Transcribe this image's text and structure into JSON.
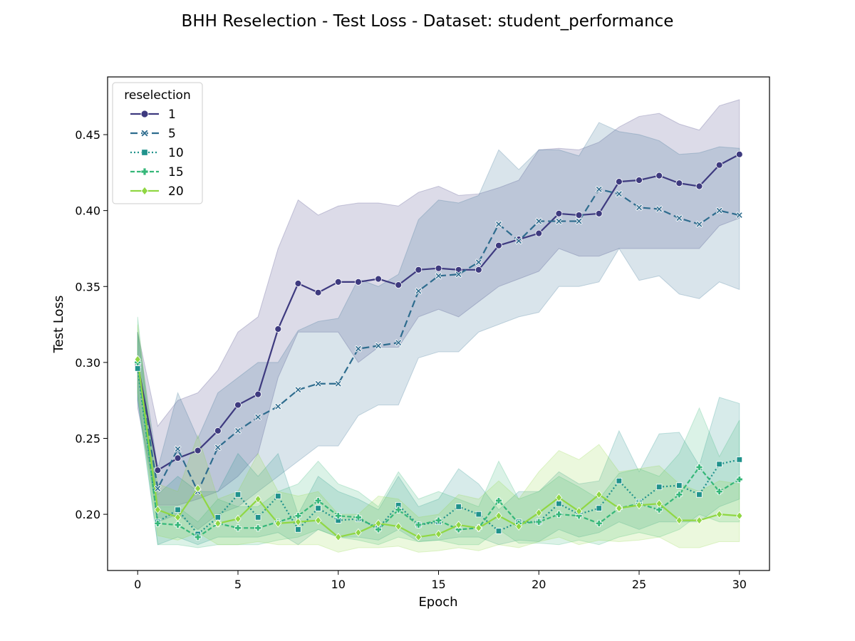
{
  "chart_data": {
    "type": "line",
    "title": "BHH Reselection - Test Loss - Dataset: student_performance",
    "xlabel": "Epoch",
    "ylabel": "Test Loss",
    "xlim": [
      -1.5,
      31.5
    ],
    "ylim": [
      0.163,
      0.488
    ],
    "xticks": [
      0,
      5,
      10,
      15,
      20,
      25,
      30
    ],
    "yticks": [
      0.2,
      0.25,
      0.3,
      0.35,
      0.4,
      0.45
    ],
    "xtick_labels": [
      "0",
      "5",
      "10",
      "15",
      "20",
      "25",
      "30"
    ],
    "ytick_labels": [
      "0.20",
      "0.25",
      "0.30",
      "0.35",
      "0.40",
      "0.45"
    ],
    "grid": false,
    "legend": {
      "title": "reselection",
      "position": "top-left"
    },
    "x": [
      0,
      1,
      2,
      3,
      4,
      5,
      6,
      7,
      8,
      9,
      10,
      11,
      12,
      13,
      14,
      15,
      16,
      17,
      18,
      19,
      20,
      21,
      22,
      23,
      24,
      25,
      26,
      27,
      28,
      29,
      30
    ],
    "series": [
      {
        "name": "1",
        "color": "#3e3a7f",
        "dash": "solid",
        "marker": "circle",
        "values": [
          0.299,
          0.229,
          0.237,
          0.242,
          0.255,
          0.272,
          0.279,
          0.322,
          0.352,
          0.346,
          0.353,
          0.353,
          0.355,
          0.351,
          0.361,
          0.362,
          0.361,
          0.361,
          0.377,
          0.381,
          0.385,
          0.398,
          0.397,
          0.398,
          0.419,
          0.42,
          0.423,
          0.418,
          0.416,
          0.43,
          0.437
        ],
        "lower": [
          0.27,
          0.206,
          0.206,
          0.21,
          0.215,
          0.225,
          0.24,
          0.29,
          0.32,
          0.32,
          0.32,
          0.3,
          0.31,
          0.31,
          0.33,
          0.335,
          0.33,
          0.34,
          0.35,
          0.355,
          0.36,
          0.375,
          0.37,
          0.37,
          0.375,
          0.375,
          0.375,
          0.375,
          0.375,
          0.39,
          0.395
        ],
        "upper": [
          0.32,
          0.258,
          0.275,
          0.28,
          0.295,
          0.32,
          0.33,
          0.375,
          0.407,
          0.397,
          0.403,
          0.405,
          0.405,
          0.403,
          0.412,
          0.416,
          0.41,
          0.411,
          0.415,
          0.42,
          0.44,
          0.441,
          0.44,
          0.445,
          0.455,
          0.462,
          0.464,
          0.457,
          0.453,
          0.469,
          0.473
        ]
      },
      {
        "name": "5",
        "color": "#2e6c8e",
        "dash": "10,5",
        "marker": "x",
        "values": [
          0.298,
          0.217,
          0.243,
          0.215,
          0.244,
          0.255,
          0.264,
          0.271,
          0.282,
          0.286,
          0.286,
          0.309,
          0.311,
          0.313,
          0.347,
          0.357,
          0.358,
          0.366,
          0.391,
          0.38,
          0.393,
          0.393,
          0.393,
          0.414,
          0.411,
          0.402,
          0.401,
          0.395,
          0.391,
          0.4,
          0.397
        ],
        "lower": [
          0.275,
          0.195,
          0.2,
          0.19,
          0.2,
          0.205,
          0.215,
          0.225,
          0.235,
          0.245,
          0.245,
          0.265,
          0.272,
          0.272,
          0.303,
          0.307,
          0.307,
          0.32,
          0.325,
          0.33,
          0.333,
          0.35,
          0.35,
          0.353,
          0.375,
          0.354,
          0.357,
          0.345,
          0.342,
          0.353,
          0.348
        ],
        "upper": [
          0.32,
          0.23,
          0.28,
          0.25,
          0.28,
          0.29,
          0.3,
          0.3,
          0.321,
          0.327,
          0.329,
          0.355,
          0.35,
          0.358,
          0.394,
          0.407,
          0.405,
          0.41,
          0.44,
          0.427,
          0.44,
          0.44,
          0.436,
          0.458,
          0.452,
          0.45,
          0.446,
          0.437,
          0.438,
          0.442,
          0.441
        ]
      },
      {
        "name": "10",
        "color": "#20928c",
        "dash": "2,3",
        "marker": "square",
        "values": [
          0.296,
          0.195,
          0.203,
          0.187,
          0.198,
          0.213,
          0.198,
          0.212,
          0.19,
          0.204,
          0.196,
          0.197,
          0.191,
          0.206,
          0.193,
          0.195,
          0.205,
          0.2,
          0.189,
          0.195,
          0.195,
          0.207,
          0.2,
          0.204,
          0.222,
          0.208,
          0.218,
          0.219,
          0.213,
          0.233,
          0.236
        ],
        "lower": [
          0.275,
          0.18,
          0.185,
          0.18,
          0.185,
          0.185,
          0.185,
          0.188,
          0.18,
          0.19,
          0.185,
          0.185,
          0.183,
          0.19,
          0.182,
          0.183,
          0.185,
          0.185,
          0.18,
          0.183,
          0.182,
          0.19,
          0.185,
          0.188,
          0.195,
          0.19,
          0.195,
          0.195,
          0.195,
          0.205,
          0.21
        ],
        "upper": [
          0.32,
          0.213,
          0.225,
          0.215,
          0.215,
          0.24,
          0.225,
          0.24,
          0.2,
          0.225,
          0.215,
          0.21,
          0.203,
          0.225,
          0.205,
          0.21,
          0.23,
          0.22,
          0.203,
          0.215,
          0.215,
          0.228,
          0.22,
          0.222,
          0.255,
          0.228,
          0.253,
          0.254,
          0.232,
          0.277,
          0.273
        ]
      },
      {
        "name": "15",
        "color": "#35b779",
        "dash": "6,3",
        "marker": "plus",
        "values": [
          0.3,
          0.194,
          0.193,
          0.185,
          0.194,
          0.191,
          0.191,
          0.195,
          0.199,
          0.209,
          0.199,
          0.198,
          0.19,
          0.203,
          0.193,
          0.196,
          0.19,
          0.191,
          0.209,
          0.194,
          0.195,
          0.2,
          0.199,
          0.194,
          0.204,
          0.207,
          0.203,
          0.213,
          0.231,
          0.215,
          0.223
        ],
        "lower": [
          0.28,
          0.18,
          0.18,
          0.178,
          0.18,
          0.18,
          0.18,
          0.183,
          0.185,
          0.19,
          0.185,
          0.183,
          0.18,
          0.185,
          0.182,
          0.183,
          0.18,
          0.18,
          0.19,
          0.181,
          0.181,
          0.18,
          0.183,
          0.18,
          0.185,
          0.188,
          0.185,
          0.19,
          0.2,
          0.195,
          0.195
        ],
        "upper": [
          0.33,
          0.205,
          0.205,
          0.195,
          0.21,
          0.205,
          0.205,
          0.215,
          0.22,
          0.235,
          0.22,
          0.215,
          0.205,
          0.228,
          0.21,
          0.215,
          0.21,
          0.205,
          0.235,
          0.21,
          0.215,
          0.225,
          0.218,
          0.21,
          0.227,
          0.23,
          0.225,
          0.24,
          0.27,
          0.238,
          0.262
        ]
      },
      {
        "name": "20",
        "color": "#90d743",
        "dash": "solid",
        "marker": "diamond",
        "values": [
          0.302,
          0.203,
          0.198,
          0.217,
          0.194,
          0.197,
          0.21,
          0.194,
          0.195,
          0.196,
          0.185,
          0.188,
          0.194,
          0.192,
          0.185,
          0.187,
          0.193,
          0.191,
          0.199,
          0.192,
          0.201,
          0.211,
          0.202,
          0.213,
          0.204,
          0.206,
          0.207,
          0.196,
          0.196,
          0.2,
          0.199
        ],
        "lower": [
          0.28,
          0.186,
          0.183,
          0.188,
          0.18,
          0.18,
          0.182,
          0.18,
          0.18,
          0.18,
          0.175,
          0.178,
          0.178,
          0.179,
          0.175,
          0.176,
          0.178,
          0.176,
          0.18,
          0.178,
          0.182,
          0.185,
          0.18,
          0.183,
          0.182,
          0.183,
          0.185,
          0.178,
          0.178,
          0.182,
          0.182
        ],
        "upper": [
          0.325,
          0.22,
          0.215,
          0.252,
          0.21,
          0.215,
          0.24,
          0.215,
          0.212,
          0.215,
          0.2,
          0.2,
          0.212,
          0.21,
          0.198,
          0.2,
          0.213,
          0.21,
          0.222,
          0.21,
          0.228,
          0.242,
          0.236,
          0.246,
          0.228,
          0.23,
          0.232,
          0.22,
          0.215,
          0.222,
          0.22
        ]
      }
    ]
  }
}
